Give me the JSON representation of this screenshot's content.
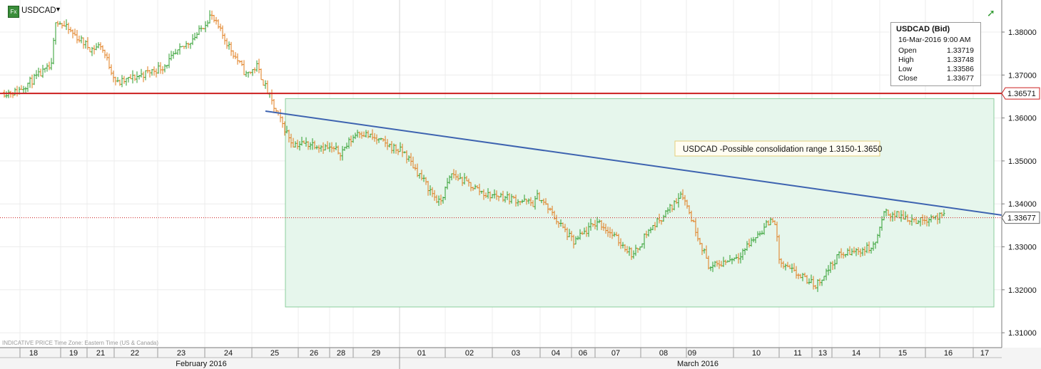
{
  "symbol": {
    "name": "USDCAD",
    "fx_badge": "Fx",
    "dropdown_icon": "caret-down-icon"
  },
  "ohlc_box": {
    "title": "USDCAD (Bid)",
    "datetime": "16-Mar-2016 9:00 AM",
    "rows": [
      {
        "label": "Open",
        "value": "1.33719"
      },
      {
        "label": "High",
        "value": "1.33748"
      },
      {
        "label": "Low",
        "value": "1.33586"
      },
      {
        "label": "Close",
        "value": "1.33677"
      }
    ]
  },
  "footer_info": "INDICATIVE PRICE   Time Zone: Eastern Time (US & Canada)",
  "corner_icon": "trend-up-icon",
  "colors": {
    "up_bar": "#2e9e2e",
    "down_bar": "#e07b1a",
    "resistance_line": "#cc1f1f",
    "trend_line": "#3d63b0",
    "range_fill": "#e6f6ec",
    "range_border": "#8ccf9e",
    "current_price_line": "#cc1f1f"
  },
  "chart_data": {
    "type": "ohlc",
    "title": "",
    "xlabel": "",
    "ylabel": "",
    "ylim": [
      1.305,
      1.386
    ],
    "y_ticks": [
      "1.38000",
      "1.37000",
      "1.36000",
      "1.35000",
      "1.34000",
      "1.33000",
      "1.32000",
      "1.31000"
    ],
    "x_day_labels": [
      "18",
      "19",
      "21",
      "22",
      "23",
      "24",
      "25",
      "26",
      "28",
      "29",
      "01",
      "02",
      "03",
      "04",
      "06",
      "07",
      "08",
      "09",
      "10",
      "11",
      "13",
      "14",
      "15",
      "16",
      "17"
    ],
    "x_month_labels": [
      "February 2016",
      "March 2016"
    ],
    "price_labels": [
      {
        "value": 1.36571,
        "text": "1.36571",
        "kind": "resistance"
      },
      {
        "value": 1.33677,
        "text": "1.33677",
        "kind": "current"
      }
    ],
    "annotation": {
      "text": "USDCAD -Possible consolidation range 1.3150-1.3650",
      "range_low": 1.316,
      "range_high": 1.3645
    },
    "series_anchors": [
      {
        "day": "18",
        "price": 1.366
      },
      {
        "day": "18",
        "price": 1.372
      },
      {
        "day": "19",
        "price": 1.383
      },
      {
        "day": "19",
        "price": 1.376
      },
      {
        "day": "21",
        "price": 1.377
      },
      {
        "day": "22",
        "price": 1.368
      },
      {
        "day": "22",
        "price": 1.371
      },
      {
        "day": "23",
        "price": 1.372
      },
      {
        "day": "23",
        "price": 1.38
      },
      {
        "day": "24",
        "price": 1.384
      },
      {
        "day": "24",
        "price": 1.37
      },
      {
        "day": "25",
        "price": 1.372
      },
      {
        "day": "25",
        "price": 1.362
      },
      {
        "day": "25",
        "price": 1.354
      },
      {
        "day": "26",
        "price": 1.354
      },
      {
        "day": "28",
        "price": 1.352
      },
      {
        "day": "29",
        "price": 1.357
      },
      {
        "day": "29",
        "price": 1.353
      },
      {
        "day": "01",
        "price": 1.352
      },
      {
        "day": "01",
        "price": 1.34
      },
      {
        "day": "02",
        "price": 1.347
      },
      {
        "day": "02",
        "price": 1.342
      },
      {
        "day": "03",
        "price": 1.342
      },
      {
        "day": "03",
        "price": 1.34
      },
      {
        "day": "04",
        "price": 1.342
      },
      {
        "day": "04",
        "price": 1.331
      },
      {
        "day": "06",
        "price": 1.333
      },
      {
        "day": "07",
        "price": 1.336
      },
      {
        "day": "07",
        "price": 1.328
      },
      {
        "day": "08",
        "price": 1.333
      },
      {
        "day": "08",
        "price": 1.343
      },
      {
        "day": "09",
        "price": 1.34
      },
      {
        "day": "09",
        "price": 1.325
      },
      {
        "day": "10",
        "price": 1.328
      },
      {
        "day": "10",
        "price": 1.337
      },
      {
        "day": "11",
        "price": 1.326
      },
      {
        "day": "11",
        "price": 1.321
      },
      {
        "day": "13",
        "price": 1.323
      },
      {
        "day": "14",
        "price": 1.328
      },
      {
        "day": "14",
        "price": 1.33
      },
      {
        "day": "15",
        "price": 1.338
      },
      {
        "day": "15",
        "price": 1.336
      },
      {
        "day": "16",
        "price": 1.337
      },
      {
        "day": "16",
        "price": 1.33677
      }
    ]
  }
}
